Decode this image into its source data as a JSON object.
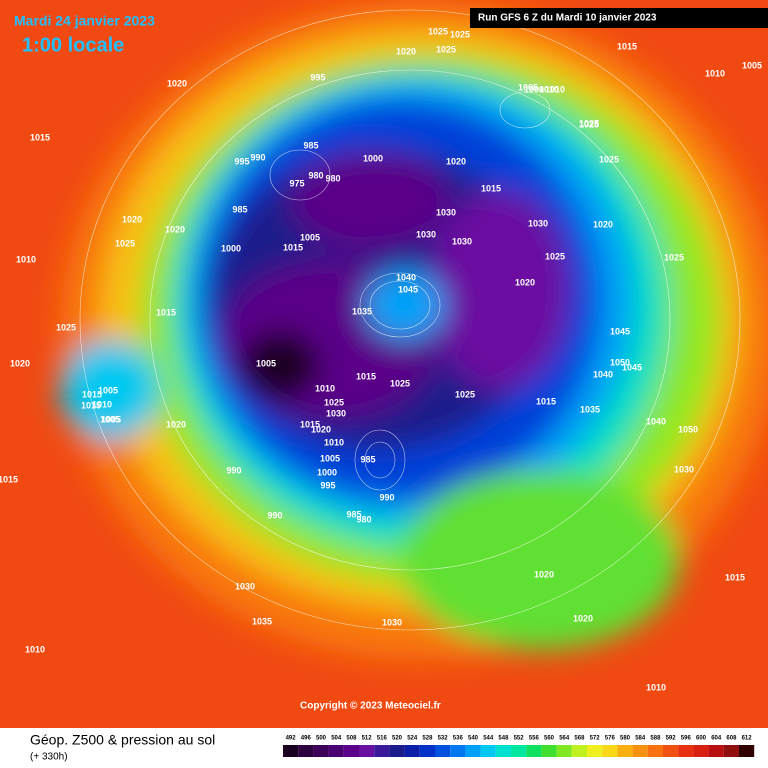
{
  "header": {
    "date": "Mardi 24 janvier 2023",
    "time": "1:00 locale",
    "run": "Run GFS 6 Z du Mardi 10 janvier 2023"
  },
  "copyright": "Copyright © 2023 Meteociel.fr",
  "footer": {
    "title": "Géop. Z500 & pression au sol",
    "lead": "(+ 330h)"
  },
  "isobar_labels": [
    "1025",
    "1025",
    "1020",
    "995",
    "1015",
    "1010",
    "1005",
    "1020",
    "1015",
    "990",
    "985",
    "975",
    "980",
    "980",
    "1000",
    "1020",
    "995",
    "1000",
    "1010",
    "1025",
    "1025",
    "1015",
    "985",
    "1005",
    "1015",
    "1020",
    "1030",
    "1030",
    "1025",
    "1030",
    "1020",
    "1010",
    "1025",
    "1040",
    "1045",
    "1035",
    "1020",
    "1025",
    "1025",
    "1025",
    "1000",
    "1030",
    "1020",
    "1005",
    "1010",
    "1015",
    "1025",
    "1045",
    "1050",
    "1045",
    "1040",
    "1025",
    "1015",
    "1035",
    "1040",
    "1050",
    "1030",
    "1005",
    "1010",
    "1015",
    "1005",
    "1020",
    "1015",
    "1020",
    "1025",
    "1015",
    "1010",
    "1025",
    "1030",
    "1010",
    "1020",
    "1015",
    "1005",
    "1000",
    "995",
    "985",
    "990",
    "990",
    "990",
    "980",
    "985",
    "1030",
    "1035",
    "1030",
    "1020",
    "1020",
    "1010",
    "1015",
    "1015",
    "1010",
    "1005",
    "1005"
  ],
  "scale": {
    "values": [
      492,
      496,
      500,
      504,
      508,
      512,
      516,
      520,
      524,
      528,
      532,
      536,
      540,
      544,
      548,
      552,
      556,
      560,
      564,
      568,
      572,
      576,
      580,
      584,
      588,
      592,
      596,
      600,
      604,
      608,
      612
    ],
    "colors": [
      "#1a0020",
      "#2d0040",
      "#3d0058",
      "#4a0070",
      "#5a0088",
      "#6a10a0",
      "#3a1a9a",
      "#1a1a8a",
      "#0a1ea8",
      "#0030c8",
      "#0050e0",
      "#0078f0",
      "#00a0f8",
      "#00c8f0",
      "#00e0d0",
      "#00e8a0",
      "#10e060",
      "#40e030",
      "#80e820",
      "#c0f020",
      "#f0f020",
      "#f8d818",
      "#f8b010",
      "#f89010",
      "#f87010",
      "#f05010",
      "#e83010",
      "#d82010",
      "#b81010",
      "#901010",
      "#300000"
    ]
  }
}
